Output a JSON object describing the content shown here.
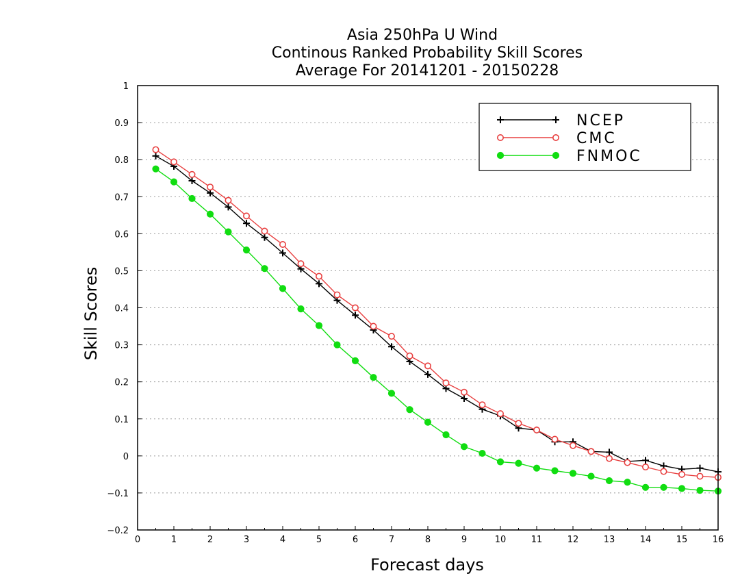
{
  "chart_data": {
    "type": "line",
    "title_lines": [
      "Asia 250hPa U Wind",
      "Continous Ranked Probability Skill Scores",
      "Average For 20141201 - 20150228"
    ],
    "xlabel": "Forecast days",
    "ylabel": "Skill Scores",
    "xlim": [
      0,
      16
    ],
    "ylim": [
      -0.2,
      1
    ],
    "x_ticks": [
      0,
      1,
      2,
      3,
      4,
      5,
      6,
      7,
      8,
      9,
      10,
      11,
      12,
      13,
      14,
      15,
      16
    ],
    "x_tick_labels": [
      "0",
      "1",
      "2",
      "3",
      "4",
      "5",
      "6",
      "7",
      "8",
      "9",
      "10",
      "11",
      "12",
      "13",
      "14",
      "15",
      "16"
    ],
    "y_ticks": [
      -0.2,
      -0.1,
      0,
      0.1,
      0.2,
      0.3,
      0.4,
      0.5,
      0.6,
      0.7,
      0.8,
      0.9,
      1
    ],
    "y_tick_labels": [
      "−0.2",
      "−0.1",
      "0",
      "0.1",
      "0.2",
      "0.3",
      "0.4",
      "0.5",
      "0.6",
      "0.7",
      "0.8",
      "0.9",
      "1"
    ],
    "grid": "horizontal-dotted",
    "legend_position": "top-right",
    "x": [
      0.5,
      1,
      1.5,
      2,
      2.5,
      3,
      3.5,
      4,
      4.5,
      5,
      5.5,
      6,
      6.5,
      7,
      7.5,
      8,
      8.5,
      9,
      9.5,
      10,
      10.5,
      11,
      11.5,
      12,
      12.5,
      13,
      13.5,
      14,
      14.5,
      15,
      15.5,
      16
    ],
    "series": [
      {
        "name": "NCEP",
        "color": "#000000",
        "marker": "plus",
        "values": [
          0.81,
          0.782,
          0.743,
          0.71,
          0.672,
          0.628,
          0.59,
          0.548,
          0.505,
          0.465,
          0.42,
          0.38,
          0.34,
          0.295,
          0.255,
          0.22,
          0.182,
          0.155,
          0.126,
          0.108,
          0.075,
          0.07,
          0.038,
          0.038,
          0.012,
          0.01,
          -0.015,
          -0.012,
          -0.027,
          -0.036,
          -0.033,
          -0.043
        ]
      },
      {
        "name": "CMC",
        "color": "#e84040",
        "marker": "open-circle",
        "values": [
          0.827,
          0.794,
          0.76,
          0.726,
          0.69,
          0.648,
          0.607,
          0.571,
          0.519,
          0.485,
          0.435,
          0.4,
          0.35,
          0.323,
          0.27,
          0.243,
          0.197,
          0.172,
          0.138,
          0.114,
          0.088,
          0.07,
          0.045,
          0.028,
          0.012,
          -0.007,
          -0.018,
          -0.03,
          -0.042,
          -0.05,
          -0.055,
          -0.058
        ]
      },
      {
        "name": "FNMOC",
        "color": "#11dd11",
        "marker": "filled-circle",
        "values": [
          0.775,
          0.74,
          0.695,
          0.653,
          0.605,
          0.556,
          0.506,
          0.452,
          0.397,
          0.352,
          0.3,
          0.257,
          0.212,
          0.169,
          0.125,
          0.091,
          0.057,
          0.025,
          0.007,
          -0.016,
          -0.02,
          -0.033,
          -0.04,
          -0.047,
          -0.055,
          -0.067,
          -0.071,
          -0.085,
          -0.085,
          -0.088,
          -0.093,
          -0.095
        ]
      }
    ]
  }
}
